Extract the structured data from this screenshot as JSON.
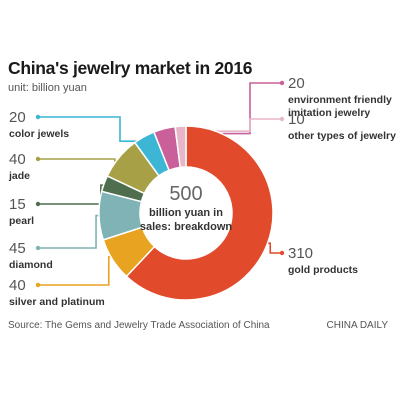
{
  "header": {
    "title": "China's jewelry market in 2016",
    "unit": "unit: billion yuan"
  },
  "center": {
    "total": "500",
    "caption_line1": "billion yuan in",
    "caption_line2": "sales: breakdown"
  },
  "footer": {
    "source": "Source: The Gems and Jewelry Trade Association of China",
    "brand": "CHINA DAILY"
  },
  "chart_data": {
    "type": "pie",
    "donut": true,
    "title": "China's jewelry market in 2016",
    "unit": "billion yuan",
    "total": 500,
    "slices": [
      {
        "value_label": "310",
        "name": "gold products",
        "value": 310,
        "color": "#e24a2c"
      },
      {
        "value_label": "40",
        "name": "silver and platinum",
        "value": 40,
        "color": "#e8a321"
      },
      {
        "value_label": "45",
        "name": "diamond",
        "value": 45,
        "color": "#7fb3b5"
      },
      {
        "value_label": "15",
        "name": "pearl",
        "value": 15,
        "color": "#4e6e4e"
      },
      {
        "value_label": "40",
        "name": "jade",
        "value": 40,
        "color": "#a7a046"
      },
      {
        "value_label": "20",
        "name": "color jewels",
        "value": 20,
        "color": "#3cb6d4"
      },
      {
        "value_label": "20",
        "name_lines": [
          "environment friendly",
          "imitation jewelry"
        ],
        "value": 20,
        "color": "#c9609a"
      },
      {
        "value_label": "10",
        "name_lines": [
          "other types of jewelry"
        ],
        "value": 10,
        "color": "#e8b6c8"
      }
    ]
  }
}
